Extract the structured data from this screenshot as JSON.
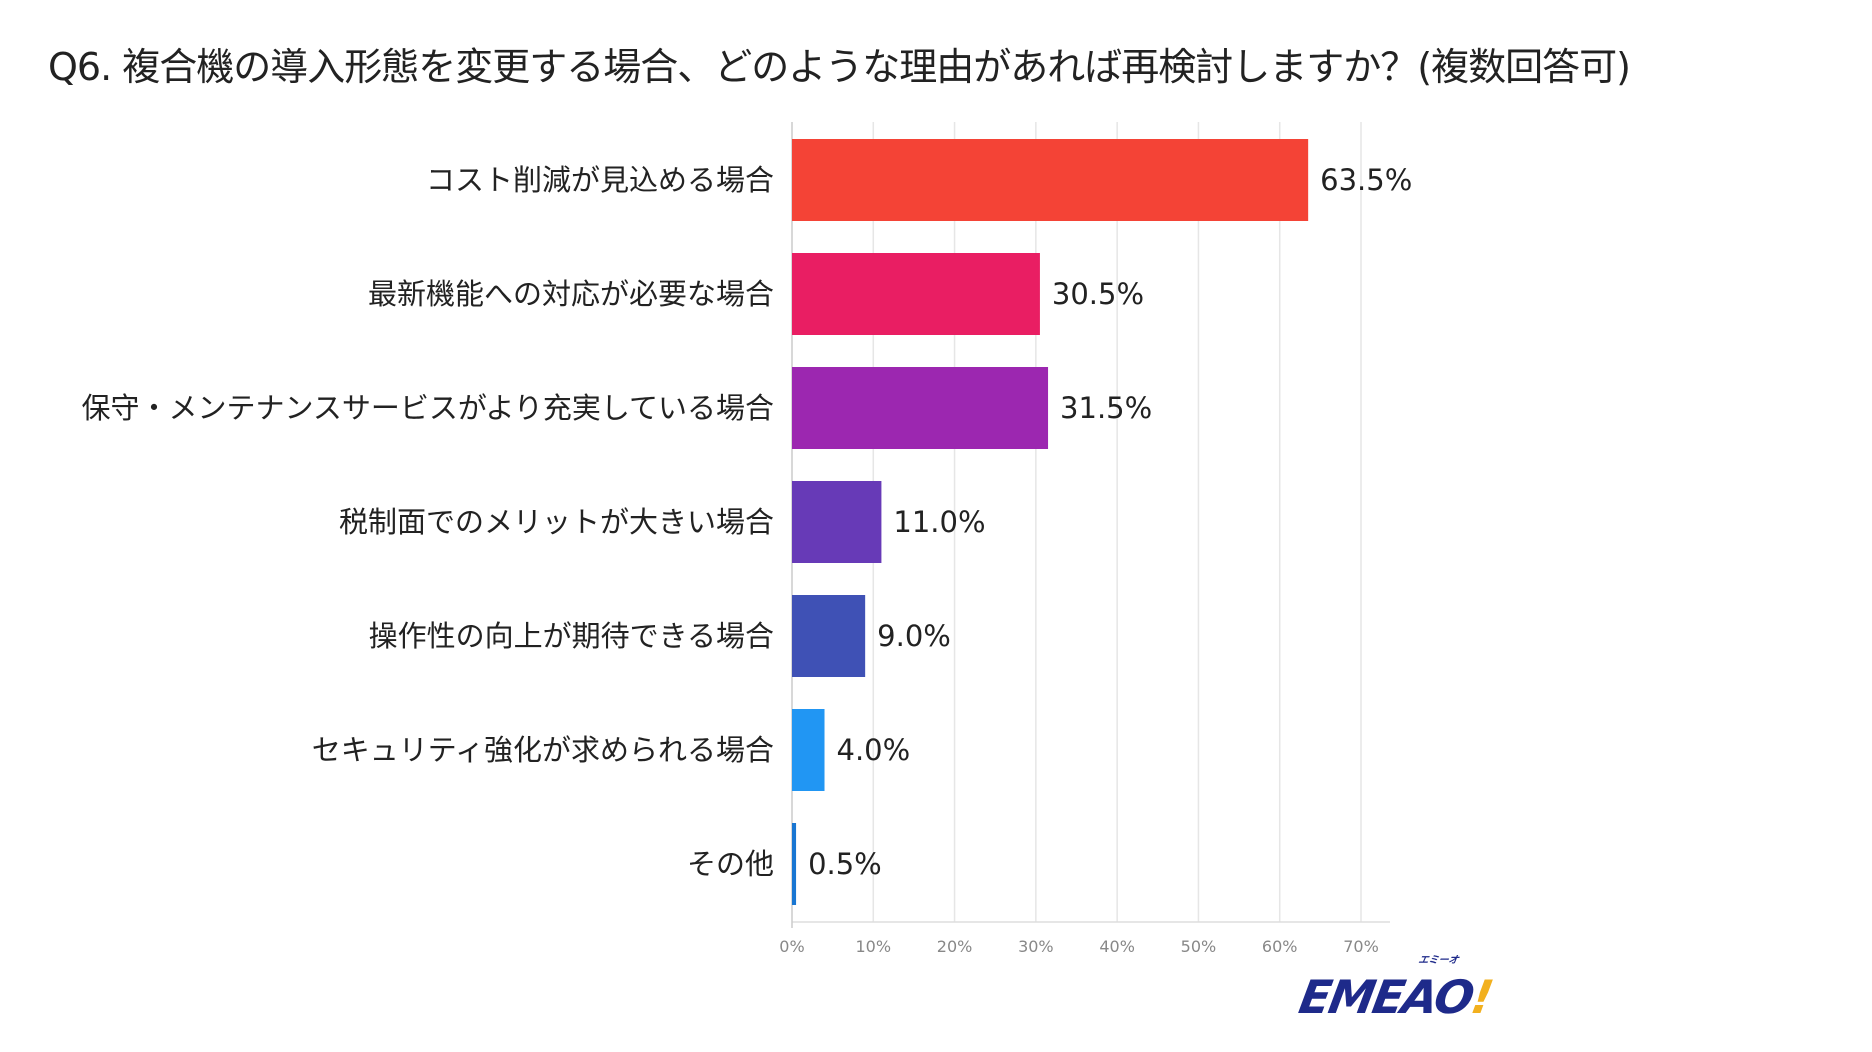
{
  "title": "Q6. 複合機の導入形態を変更する場合、どのような理由があれば再検討しますか？(複数回答可)",
  "logo": {
    "text": "EMEAO",
    "mark": "!",
    "kana": "エミーオ"
  },
  "chart_data": {
    "type": "bar",
    "orientation": "horizontal",
    "title": "Q6. 複合機の導入形態を変更する場合、どのような理由があれば再検討しますか？(複数回答可)",
    "categories": [
      "コスト削減が見込める場合",
      "最新機能への対応が必要な場合",
      "保守・メンテナンスサービスがより充実している場合",
      "税制面でのメリットが大きい場合",
      "操作性の向上が期待できる場合",
      "セキュリティ強化が求められる場合",
      "その他"
    ],
    "values": [
      63.5,
      30.5,
      31.5,
      11.0,
      9.0,
      4.0,
      0.5
    ],
    "value_labels": [
      "63.5%",
      "30.5%",
      "31.5%",
      "11.0%",
      "9.0%",
      "4.0%",
      "0.5%"
    ],
    "colors": [
      "#f44336",
      "#e91e63",
      "#9c27b0",
      "#673ab7",
      "#3f51b5",
      "#2196f3",
      "#1976d2"
    ],
    "xlim": [
      0,
      70
    ],
    "x_ticks": [
      "0%",
      "10%",
      "20%",
      "30%",
      "40%",
      "50%",
      "60%",
      "70%"
    ],
    "xlabel": "",
    "ylabel": "",
    "grid": "vertical",
    "legend": "none"
  }
}
